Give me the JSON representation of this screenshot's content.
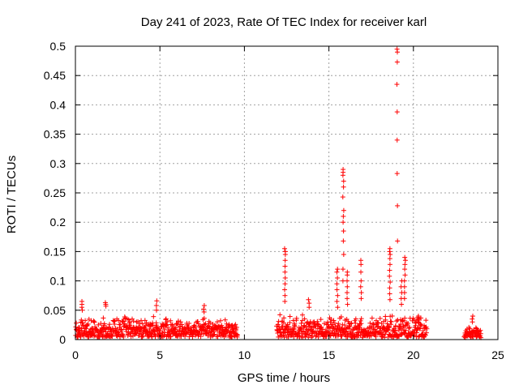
{
  "chart_data": {
    "type": "scatter",
    "title": "Day 241 of 2023, Rate Of TEC Index for receiver karl",
    "xlabel": "GPS time / hours",
    "ylabel": "ROTI / TECUs",
    "xlim": [
      0,
      25
    ],
    "ylim": [
      0,
      0.5
    ],
    "grid": true,
    "marker": "plus",
    "color": "#ff0000",
    "x_ticks": [
      {
        "value": 0,
        "label": "0"
      },
      {
        "value": 5,
        "label": "5"
      },
      {
        "value": 10,
        "label": "10"
      },
      {
        "value": 15,
        "label": "15"
      },
      {
        "value": 20,
        "label": "20"
      },
      {
        "value": 25,
        "label": "25"
      }
    ],
    "y_ticks": [
      {
        "value": 0,
        "label": "0"
      },
      {
        "value": 0.05,
        "label": "0.05"
      },
      {
        "value": 0.1,
        "label": "0.1"
      },
      {
        "value": 0.15,
        "label": "0.15"
      },
      {
        "value": 0.2,
        "label": "0.2"
      },
      {
        "value": 0.25,
        "label": "0.25"
      },
      {
        "value": 0.3,
        "label": "0.3"
      },
      {
        "value": 0.35,
        "label": "0.35"
      },
      {
        "value": 0.4,
        "label": "0.4"
      },
      {
        "value": 0.45,
        "label": "0.45"
      },
      {
        "value": 0.5,
        "label": "0.5"
      }
    ],
    "segments": [
      {
        "x_start": 0.0,
        "x_end": 9.6,
        "base": 0.02,
        "spread": 0.028
      },
      {
        "x_start": 11.9,
        "x_end": 20.8,
        "base": 0.018,
        "spread": 0.03
      },
      {
        "x_start": 23.0,
        "x_end": 24.0,
        "base": 0.015,
        "spread": 0.016
      }
    ],
    "spikes": [
      {
        "x": 0.4,
        "values": [
          0.065,
          0.06,
          0.055,
          0.05
        ]
      },
      {
        "x": 1.8,
        "values": [
          0.063,
          0.06,
          0.057
        ]
      },
      {
        "x": 4.8,
        "values": [
          0.066,
          0.058,
          0.05
        ]
      },
      {
        "x": 7.6,
        "values": [
          0.058,
          0.052,
          0.047
        ]
      },
      {
        "x": 12.4,
        "values": [
          0.155,
          0.15,
          0.145,
          0.135,
          0.125,
          0.115,
          0.105,
          0.095,
          0.085,
          0.075,
          0.065
        ]
      },
      {
        "x": 13.8,
        "values": [
          0.068,
          0.062,
          0.055
        ]
      },
      {
        "x": 15.5,
        "values": [
          0.12,
          0.115,
          0.105,
          0.095,
          0.085,
          0.075,
          0.065,
          0.055
        ]
      },
      {
        "x": 15.85,
        "values": [
          0.29,
          0.285,
          0.28,
          0.27,
          0.26,
          0.243,
          0.22,
          0.21,
          0.2,
          0.185,
          0.168,
          0.145,
          0.12,
          0.1
        ]
      },
      {
        "x": 16.1,
        "values": [
          0.115,
          0.11,
          0.1,
          0.09,
          0.08,
          0.07,
          0.06
        ]
      },
      {
        "x": 16.9,
        "values": [
          0.135,
          0.128,
          0.115,
          0.1,
          0.09,
          0.08,
          0.07
        ]
      },
      {
        "x": 18.6,
        "values": [
          0.155,
          0.15,
          0.145,
          0.138,
          0.128,
          0.118,
          0.108,
          0.098,
          0.088,
          0.078,
          0.068
        ]
      },
      {
        "x": 19.05,
        "values": [
          0.495,
          0.49,
          0.473,
          0.435,
          0.388,
          0.34,
          0.283,
          0.228,
          0.168
        ]
      },
      {
        "x": 19.3,
        "values": [
          0.1,
          0.09,
          0.08,
          0.07,
          0.06
        ]
      },
      {
        "x": 19.5,
        "values": [
          0.14,
          0.135,
          0.128,
          0.12,
          0.11,
          0.1,
          0.09,
          0.08,
          0.07
        ]
      },
      {
        "x": 20.3,
        "values": [
          0.04,
          0.035,
          0.03
        ]
      },
      {
        "x": 23.5,
        "values": [
          0.04,
          0.035,
          0.03
        ]
      }
    ]
  }
}
